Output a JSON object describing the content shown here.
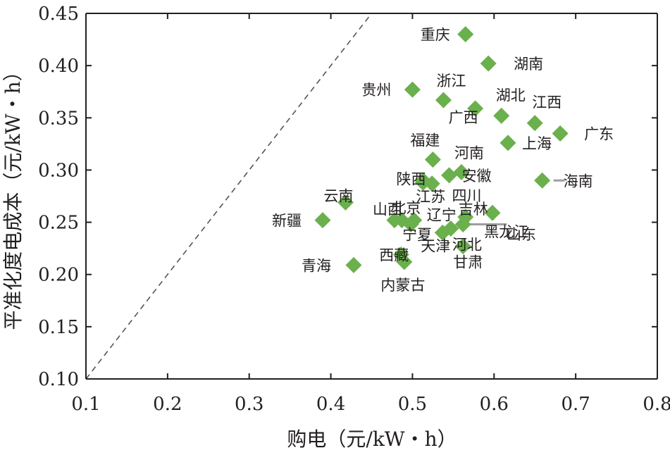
{
  "chart_data": {
    "type": "scatter",
    "title": "",
    "xlabel": "购电（元/kW・h）",
    "ylabel": "平准化度电成本（元/kW・h）",
    "xlim": [
      0.1,
      0.8
    ],
    "ylim": [
      0.1,
      0.45
    ],
    "xticks": [
      "0.1",
      "0.2",
      "0.3",
      "0.4",
      "0.5",
      "0.6",
      "0.7",
      "0.8"
    ],
    "yticks": [
      "0.10",
      "0.15",
      "0.20",
      "0.25",
      "0.30",
      "0.35",
      "0.40",
      "0.45"
    ],
    "reference_line": {
      "style": "dashed",
      "x": [
        0.1,
        0.45
      ],
      "y": [
        0.1,
        0.45
      ],
      "meaning": "y = x"
    },
    "marker_color": "#6ab04c",
    "leader_color": "#9e9e9e",
    "points": [
      {
        "name": "重庆",
        "x": 0.565,
        "y": 0.43
      },
      {
        "name": "湖南",
        "x": 0.593,
        "y": 0.402
      },
      {
        "name": "贵州",
        "x": 0.5,
        "y": 0.377
      },
      {
        "name": "浙江",
        "x": 0.538,
        "y": 0.367
      },
      {
        "name": "广西",
        "x": 0.577,
        "y": 0.359
      },
      {
        "name": "湖北",
        "x": 0.609,
        "y": 0.352
      },
      {
        "name": "江西",
        "x": 0.65,
        "y": 0.345
      },
      {
        "name": "广东",
        "x": 0.681,
        "y": 0.335
      },
      {
        "name": "上海",
        "x": 0.617,
        "y": 0.326
      },
      {
        "name": "福建",
        "x": 0.525,
        "y": 0.31
      },
      {
        "name": "河南",
        "x": 0.56,
        "y": 0.298
      },
      {
        "name": "安徽",
        "x": 0.545,
        "y": 0.295
      },
      {
        "name": "陕西",
        "x": 0.513,
        "y": 0.29
      },
      {
        "name": "海南",
        "x": 0.659,
        "y": 0.29
      },
      {
        "name": "江苏",
        "x": 0.524,
        "y": 0.287
      },
      {
        "name": "四川",
        "x": 0.513,
        "y": 0.288
      },
      {
        "name": "云南",
        "x": 0.418,
        "y": 0.269
      },
      {
        "name": "山东",
        "x": 0.598,
        "y": 0.259
      },
      {
        "name": "吉林",
        "x": 0.565,
        "y": 0.255
      },
      {
        "name": "新疆",
        "x": 0.39,
        "y": 0.252
      },
      {
        "name": "山西",
        "x": 0.478,
        "y": 0.252
      },
      {
        "name": "北京",
        "x": 0.487,
        "y": 0.252
      },
      {
        "name": "辽宁",
        "x": 0.502,
        "y": 0.252
      },
      {
        "name": "宁夏",
        "x": 0.498,
        "y": 0.248
      },
      {
        "name": "黑龙江",
        "x": 0.562,
        "y": 0.248
      },
      {
        "name": "天津",
        "x": 0.537,
        "y": 0.24
      },
      {
        "name": "河北",
        "x": 0.547,
        "y": 0.244
      },
      {
        "name": "甘肃",
        "x": 0.562,
        "y": 0.227
      },
      {
        "name": "西藏",
        "x": 0.486,
        "y": 0.219
      },
      {
        "name": "内蒙古",
        "x": 0.49,
        "y": 0.212
      },
      {
        "name": "青海",
        "x": 0.428,
        "y": 0.209
      }
    ]
  }
}
